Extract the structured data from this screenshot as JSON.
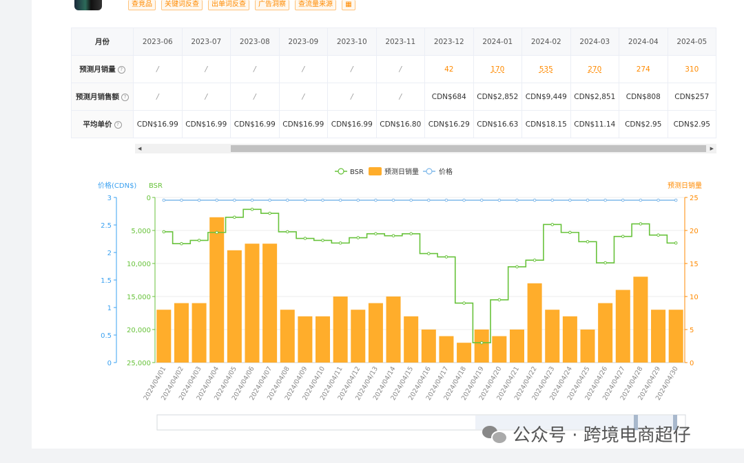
{
  "toolbar": {
    "tags": [
      "查竞品",
      "关键词反查",
      "出单词反查",
      "广告洞察",
      "查流量来源"
    ]
  },
  "table": {
    "header_label": "月份",
    "months": [
      "2023-06",
      "2023-07",
      "2023-08",
      "2023-09",
      "2023-10",
      "2023-11",
      "2023-12",
      "2024-01",
      "2024-02",
      "2024-03",
      "2024-04",
      "2024-05"
    ],
    "rows": [
      {
        "label": "预测月销量",
        "help": "?",
        "cells": [
          "/",
          "/",
          "/",
          "/",
          "/",
          "/",
          "42",
          "170",
          "535",
          "270",
          "274",
          "310"
        ]
      },
      {
        "label": "预测月销售额",
        "help": "?",
        "cells": [
          "/",
          "/",
          "/",
          "/",
          "/",
          "/",
          "CDN$684",
          "CDN$2,852",
          "CDN$9,449",
          "CDN$2,851",
          "CDN$808",
          "CDN$257"
        ]
      },
      {
        "label": "平均单价",
        "help": "?",
        "cells": [
          "CDN$16.99",
          "CDN$16.99",
          "CDN$16.99",
          "CDN$16.99",
          "CDN$16.99",
          "CDN$16.80",
          "CDN$16.29",
          "CDN$16.63",
          "CDN$18.15",
          "CDN$11.14",
          "CDN$2.95",
          "CDN$2.95"
        ]
      }
    ]
  },
  "chart_data": {
    "type": "bar",
    "legend": [
      "BSR",
      "预测日销量",
      "价格"
    ],
    "axes": {
      "price": {
        "label": "价格(CDN$)",
        "min": 0,
        "max": 3,
        "ticks": [
          "0",
          "0.5",
          "1",
          "1.5",
          "2",
          "2.5",
          "3"
        ]
      },
      "bsr": {
        "label": "BSR",
        "min": 0,
        "max": 25000,
        "inverted": true,
        "ticks": [
          "0",
          "5,000",
          "10,000",
          "15,000",
          "20,000",
          "25,000"
        ]
      },
      "sales": {
        "label": "预测日销量",
        "min": 0,
        "max": 25,
        "ticks": [
          "0",
          "5",
          "10",
          "15",
          "20",
          "25"
        ]
      }
    },
    "categories": [
      "2024/04/01",
      "2024/04/02",
      "2024/04/03",
      "2024/04/04",
      "2024/04/05",
      "2024/04/06",
      "2024/04/07",
      "2024/04/08",
      "2024/04/09",
      "2024/04/10",
      "2024/04/11",
      "2024/04/12",
      "2024/04/13",
      "2024/04/14",
      "2024/04/15",
      "2024/04/16",
      "2024/04/17",
      "2024/04/18",
      "2024/04/19",
      "2024/04/20",
      "2024/04/21",
      "2024/04/22",
      "2024/04/23",
      "2024/04/24",
      "2024/04/25",
      "2024/04/26",
      "2024/04/27",
      "2024/04/28",
      "2024/04/29",
      "2024/04/30"
    ],
    "series": [
      {
        "name": "预测日销量",
        "axis": "sales",
        "values": [
          8,
          9,
          9,
          22,
          17,
          18,
          18,
          8,
          7,
          7,
          10,
          8,
          9,
          10,
          7,
          5,
          4,
          3,
          5,
          4,
          5,
          12,
          8,
          7,
          5,
          9,
          11,
          13,
          8,
          8
        ]
      },
      {
        "name": "BSR",
        "axis": "bsr",
        "values": [
          5200,
          7000,
          6500,
          5300,
          3000,
          1800,
          2400,
          5200,
          6200,
          6500,
          6900,
          6100,
          5500,
          5800,
          5500,
          8500,
          9000,
          16000,
          22000,
          15500,
          10500,
          9500,
          4100,
          5300,
          6700,
          9900,
          5900,
          4000,
          5700,
          6900
        ]
      },
      {
        "name": "价格",
        "axis": "price",
        "values": [
          2.95,
          2.95,
          2.95,
          2.95,
          2.95,
          2.95,
          2.95,
          2.95,
          2.95,
          2.95,
          2.95,
          2.95,
          2.95,
          2.95,
          2.95,
          2.95,
          2.95,
          2.95,
          2.95,
          2.95,
          2.95,
          2.95,
          2.95,
          2.95,
          2.95,
          2.95,
          2.95,
          2.95,
          2.95,
          2.95
        ]
      }
    ],
    "colors": {
      "bar": "#ffad2b",
      "bsr": "#67c23a",
      "price": "#7fb8ea",
      "price_axis": "#3aa0f0",
      "sales_axis": "#ff8a00"
    }
  },
  "watermark": {
    "text": "公众号 · 跨境电商超仔"
  }
}
